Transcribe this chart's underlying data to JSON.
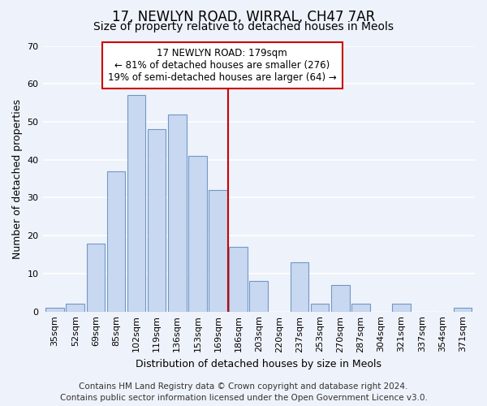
{
  "title": "17, NEWLYN ROAD, WIRRAL, CH47 7AR",
  "subtitle": "Size of property relative to detached houses in Meols",
  "xlabel": "Distribution of detached houses by size in Meols",
  "ylabel": "Number of detached properties",
  "bar_labels": [
    "35sqm",
    "52sqm",
    "69sqm",
    "85sqm",
    "102sqm",
    "119sqm",
    "136sqm",
    "153sqm",
    "169sqm",
    "186sqm",
    "203sqm",
    "220sqm",
    "237sqm",
    "253sqm",
    "270sqm",
    "287sqm",
    "304sqm",
    "321sqm",
    "337sqm",
    "354sqm",
    "371sqm"
  ],
  "bar_heights": [
    1,
    2,
    18,
    37,
    57,
    48,
    52,
    41,
    32,
    17,
    8,
    0,
    13,
    2,
    7,
    2,
    0,
    2,
    0,
    0,
    1
  ],
  "bar_color": "#c8d8f0",
  "bar_edge_color": "#7098c8",
  "property_line_x": 8.5,
  "property_line_label": "17 NEWLYN ROAD: 179sqm",
  "annotation_line1": "← 81% of detached houses are smaller (276)",
  "annotation_line2": "19% of semi-detached houses are larger (64) →",
  "annotation_box_color": "#ffffff",
  "annotation_box_edge": "#cc0000",
  "property_line_color": "#cc0000",
  "ylim": [
    0,
    70
  ],
  "yticks": [
    0,
    10,
    20,
    30,
    40,
    50,
    60,
    70
  ],
  "footer1": "Contains HM Land Registry data © Crown copyright and database right 2024.",
  "footer2": "Contains public sector information licensed under the Open Government Licence v3.0.",
  "background_color": "#eef2fa",
  "plot_bg_color": "#eef2fa",
  "grid_color": "#ffffff",
  "title_fontsize": 12,
  "subtitle_fontsize": 10,
  "axis_label_fontsize": 9,
  "tick_fontsize": 8,
  "footer_fontsize": 7.5,
  "annotation_fontsize": 8.5
}
